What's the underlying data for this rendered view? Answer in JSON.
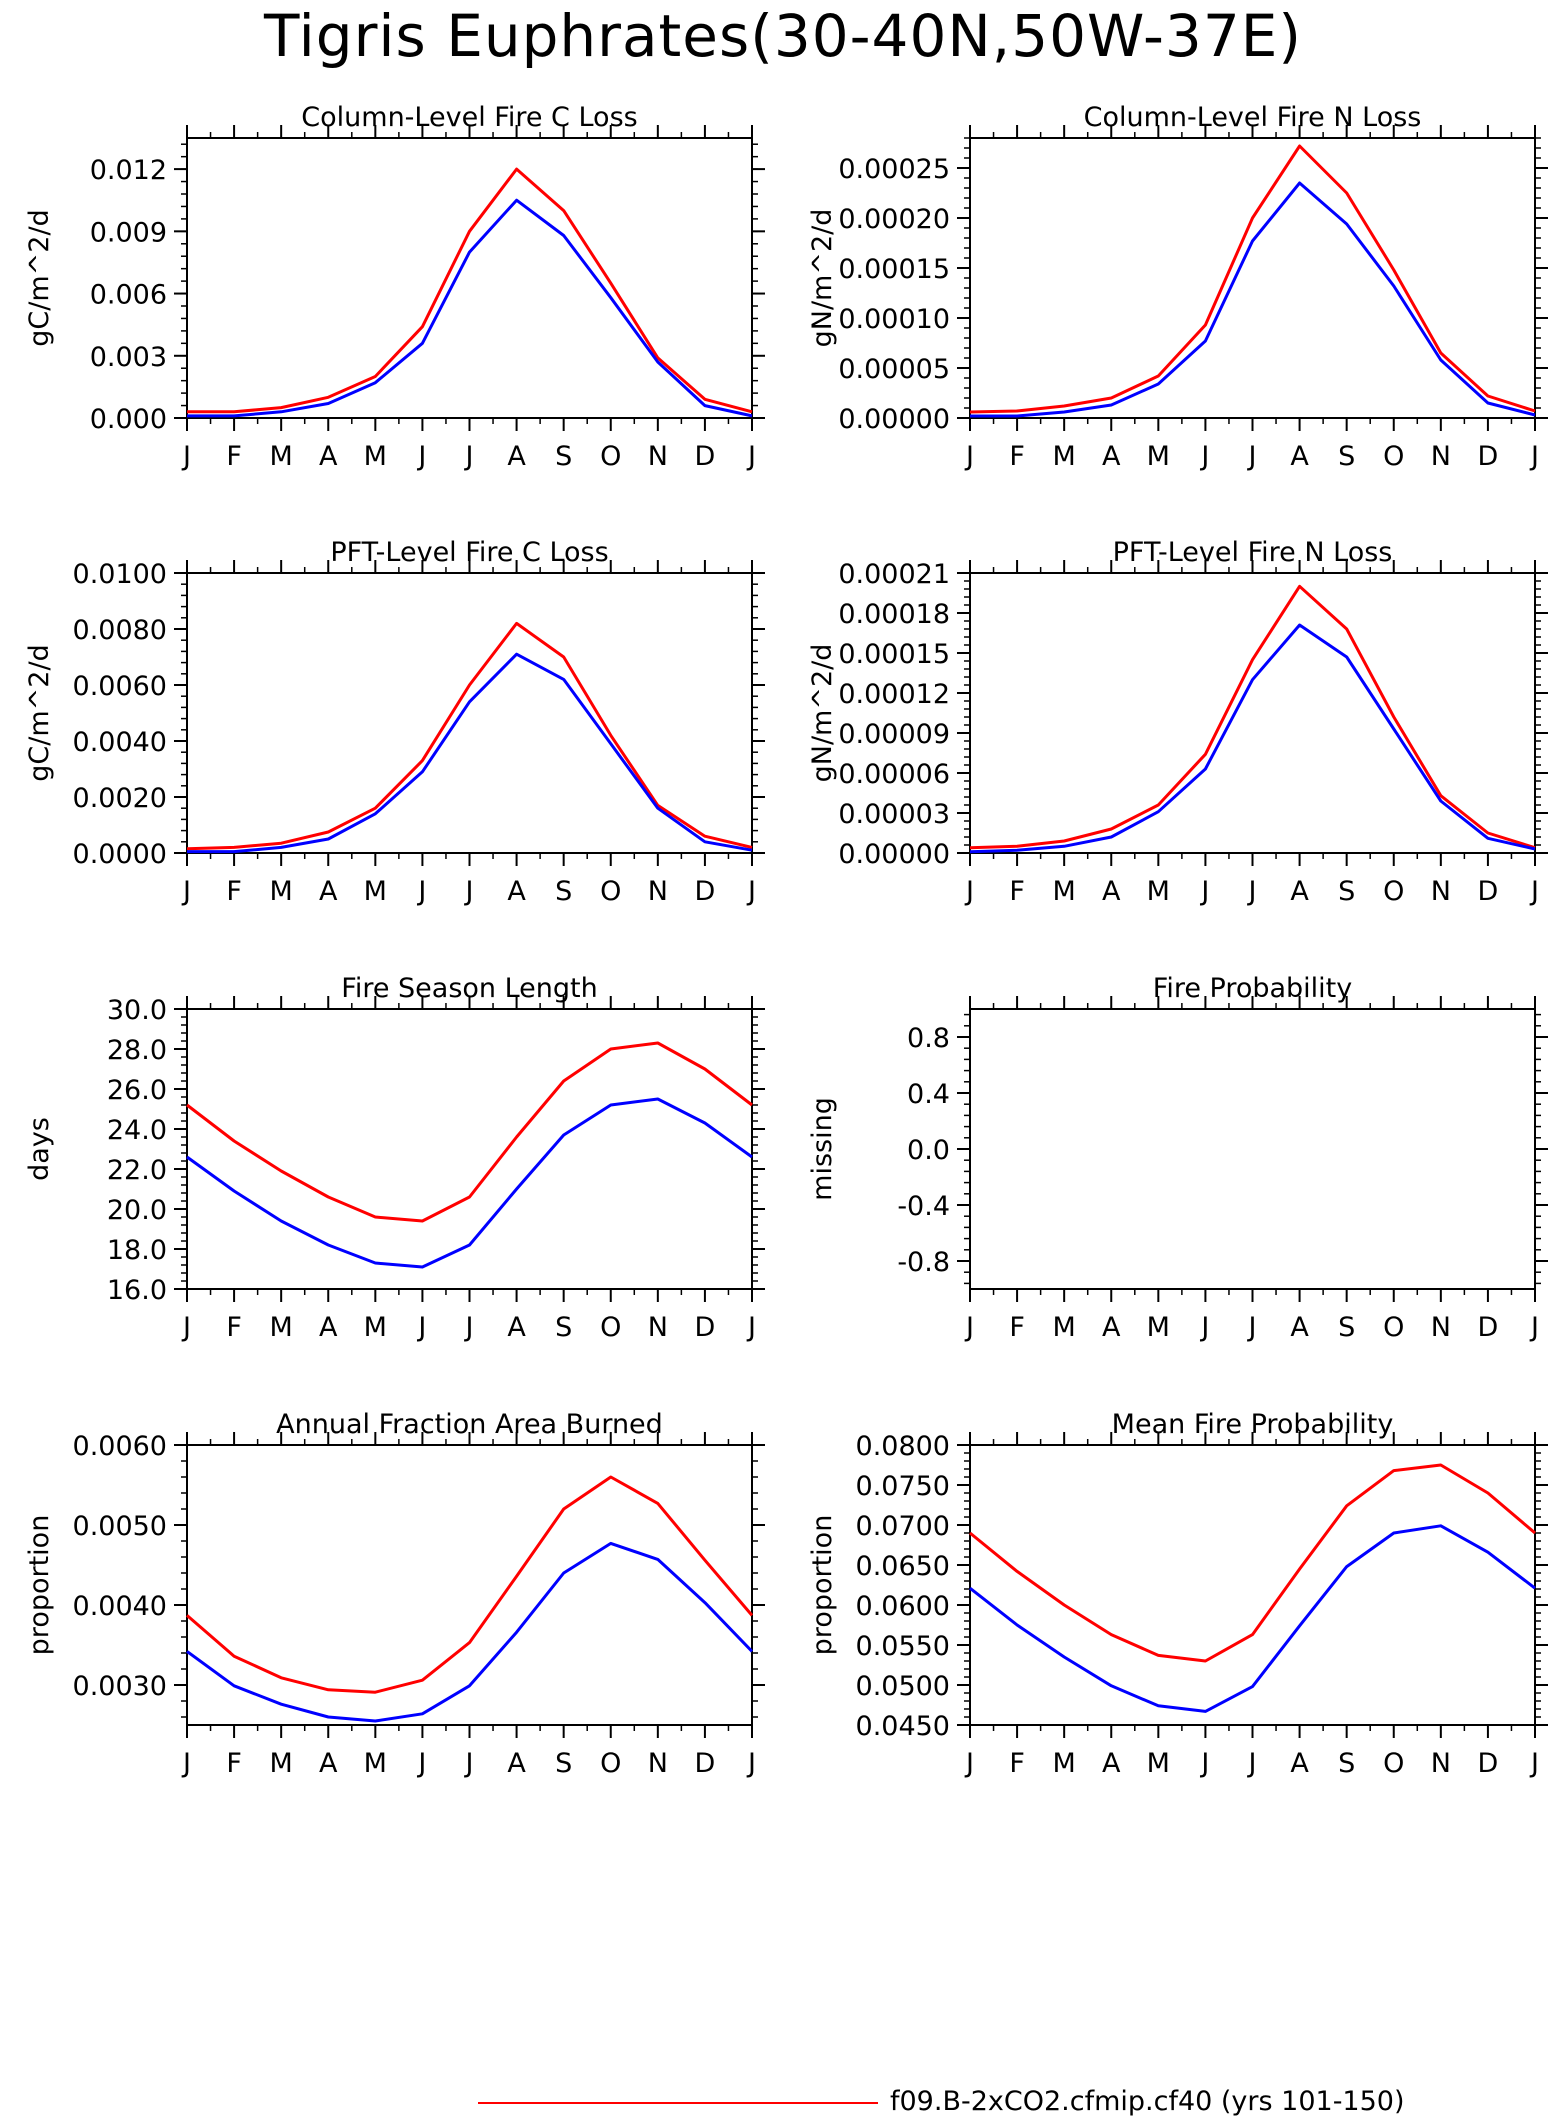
{
  "title": "Tigris Euphrates(30-40N,50W-37E)",
  "colors": {
    "series_a": "#ff0000",
    "series_b": "#0000ff"
  },
  "legend": {
    "label": "f09.B-2xCO2.cfmip.cf40 (yrs 101-150)"
  },
  "chart_data": [
    {
      "type": "line",
      "title": "Column-Level Fire C Loss",
      "ylabel": "gC/m^2/d",
      "categories": [
        "J",
        "F",
        "M",
        "A",
        "M",
        "J",
        "J",
        "A",
        "S",
        "O",
        "N",
        "D",
        "J"
      ],
      "yticks": [
        "0.000",
        "0.003",
        "0.006",
        "0.009",
        "0.012"
      ],
      "ylim": [
        0,
        0.0135
      ],
      "series": [
        {
          "values": [
            0.0003,
            0.0003,
            0.0005,
            0.001,
            0.002,
            0.0044,
            0.009,
            0.012,
            0.01,
            0.0065,
            0.0029,
            0.0009,
            0.0003
          ]
        },
        {
          "values": [
            0.0001,
            0.0001,
            0.0003,
            0.0007,
            0.0017,
            0.0036,
            0.008,
            0.0105,
            0.0088,
            0.0058,
            0.0027,
            0.0006,
            0.0001
          ]
        }
      ]
    },
    {
      "type": "line",
      "title": "Column-Level Fire N Loss",
      "ylabel": "gN/m^2/d",
      "categories": [
        "J",
        "F",
        "M",
        "A",
        "M",
        "J",
        "J",
        "A",
        "S",
        "O",
        "N",
        "D",
        "J"
      ],
      "yticks": [
        "0.00000",
        "0.00005",
        "0.00010",
        "0.00015",
        "0.00020",
        "0.00025"
      ],
      "ylim": [
        0,
        0.00028
      ],
      "series": [
        {
          "values": [
            6e-06,
            7e-06,
            1.2e-05,
            2e-05,
            4.2e-05,
            9.3e-05,
            0.0002,
            0.000272,
            0.000225,
            0.000148,
            6.5e-05,
            2.2e-05,
            7e-06
          ]
        },
        {
          "values": [
            2e-06,
            2e-06,
            6e-06,
            1.3e-05,
            3.4e-05,
            7.7e-05,
            0.000177,
            0.000235,
            0.000194,
            0.000132,
            5.8e-05,
            1.5e-05,
            3e-06
          ]
        }
      ]
    },
    {
      "type": "line",
      "title": "PFT-Level Fire C Loss",
      "ylabel": "gC/m^2/d",
      "categories": [
        "J",
        "F",
        "M",
        "A",
        "M",
        "J",
        "J",
        "A",
        "S",
        "O",
        "N",
        "D",
        "J"
      ],
      "yticks": [
        "0.0000",
        "0.0020",
        "0.0040",
        "0.0060",
        "0.0080",
        "0.0100"
      ],
      "ylim": [
        0,
        0.01
      ],
      "series": [
        {
          "values": [
            0.00015,
            0.0002,
            0.00035,
            0.00075,
            0.0016,
            0.0033,
            0.006,
            0.0082,
            0.007,
            0.0042,
            0.0017,
            0.0006,
            0.0002
          ]
        },
        {
          "values": [
            5e-05,
            5e-05,
            0.0002,
            0.0005,
            0.0014,
            0.0029,
            0.0054,
            0.0071,
            0.0062,
            0.0039,
            0.0016,
            0.0004,
            0.0001
          ]
        }
      ]
    },
    {
      "type": "line",
      "title": "PFT-Level Fire N Loss",
      "ylabel": "gN/m^2/d",
      "categories": [
        "J",
        "F",
        "M",
        "A",
        "M",
        "J",
        "J",
        "A",
        "S",
        "O",
        "N",
        "D",
        "J"
      ],
      "yticks": [
        "0.00000",
        "0.00003",
        "0.00006",
        "0.00009",
        "0.00012",
        "0.00015",
        "0.00018",
        "0.00021"
      ],
      "ylim": [
        0,
        0.00021
      ],
      "series": [
        {
          "values": [
            4e-06,
            5e-06,
            9e-06,
            1.8e-05,
            3.6e-05,
            7.4e-05,
            0.000145,
            0.0002,
            0.000168,
            0.000102,
            4.3e-05,
            1.5e-05,
            4e-06
          ]
        },
        {
          "values": [
            1e-06,
            2e-06,
            5e-06,
            1.2e-05,
            3.1e-05,
            6.3e-05,
            0.00013,
            0.000171,
            0.000147,
            9.3e-05,
            3.9e-05,
            1.1e-05,
            3e-06
          ]
        }
      ]
    },
    {
      "type": "line",
      "title": "Fire Season Length",
      "ylabel": "days",
      "categories": [
        "J",
        "F",
        "M",
        "A",
        "M",
        "J",
        "J",
        "A",
        "S",
        "O",
        "N",
        "D",
        "J"
      ],
      "yticks": [
        "16.0",
        "18.0",
        "20.0",
        "22.0",
        "24.0",
        "26.0",
        "28.0",
        "30.0"
      ],
      "ylim": [
        16,
        30
      ],
      "series": [
        {
          "values": [
            25.2,
            23.4,
            21.9,
            20.6,
            19.6,
            19.4,
            20.6,
            23.6,
            26.4,
            28.0,
            28.3,
            27.0,
            25.2
          ]
        },
        {
          "values": [
            22.6,
            20.9,
            19.4,
            18.2,
            17.3,
            17.1,
            18.2,
            21.0,
            23.7,
            25.2,
            25.5,
            24.3,
            22.6
          ]
        }
      ]
    },
    {
      "type": "line",
      "title": "Fire Probability",
      "ylabel": "missing",
      "categories": [
        "J",
        "F",
        "M",
        "A",
        "M",
        "J",
        "J",
        "A",
        "S",
        "O",
        "N",
        "D",
        "J"
      ],
      "yticks": [
        "-0.8",
        "-0.4",
        "0.0",
        "0.4",
        "0.8"
      ],
      "ylim": [
        -1,
        1
      ],
      "series": []
    },
    {
      "type": "line",
      "title": "Annual Fraction Area Burned",
      "ylabel": "proportion",
      "categories": [
        "J",
        "F",
        "M",
        "A",
        "M",
        "J",
        "J",
        "A",
        "S",
        "O",
        "N",
        "D",
        "J"
      ],
      "yticks": [
        "0.0030",
        "0.0040",
        "0.0050",
        "0.0060"
      ],
      "ylim": [
        0.0025,
        0.006
      ],
      "series": [
        {
          "values": [
            0.00387,
            0.00336,
            0.00309,
            0.00294,
            0.00291,
            0.00306,
            0.00353,
            0.00436,
            0.0052,
            0.0056,
            0.00527,
            0.00456,
            0.00387
          ]
        },
        {
          "values": [
            0.00342,
            0.00299,
            0.00276,
            0.0026,
            0.00255,
            0.00264,
            0.00299,
            0.00366,
            0.0044,
            0.00477,
            0.00457,
            0.00403,
            0.00342
          ]
        }
      ]
    },
    {
      "type": "line",
      "title": "Mean Fire Probability",
      "ylabel": "proportion",
      "categories": [
        "J",
        "F",
        "M",
        "A",
        "M",
        "J",
        "J",
        "A",
        "S",
        "O",
        "N",
        "D",
        "J"
      ],
      "yticks": [
        "0.0450",
        "0.0500",
        "0.0550",
        "0.0600",
        "0.0650",
        "0.0700",
        "0.0750",
        "0.0800"
      ],
      "ylim": [
        0.045,
        0.08
      ],
      "series": [
        {
          "values": [
            0.069,
            0.0642,
            0.06,
            0.0563,
            0.0537,
            0.053,
            0.0563,
            0.0645,
            0.0724,
            0.0768,
            0.0775,
            0.074,
            0.069
          ]
        },
        {
          "values": [
            0.0621,
            0.0575,
            0.0535,
            0.0499,
            0.0474,
            0.0467,
            0.0498,
            0.0574,
            0.0648,
            0.069,
            0.0699,
            0.0666,
            0.0621
          ]
        }
      ]
    }
  ]
}
